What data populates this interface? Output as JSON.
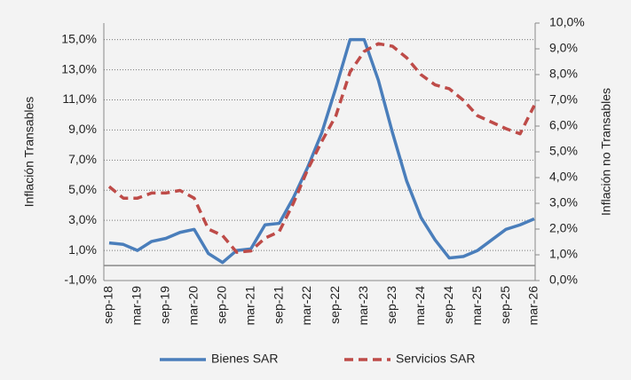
{
  "chart_data": {
    "type": "line",
    "y_label": "Inflación Transables",
    "y2_label": "Inflación no Transables",
    "categories": [
      "sep-18",
      null,
      "mar-19",
      null,
      "sep-19",
      null,
      "mar-20",
      null,
      "sep-20",
      null,
      "mar-21",
      null,
      "sep-21",
      null,
      "mar-22",
      null,
      "sep-22",
      null,
      "mar-23",
      null,
      "sep-23",
      null,
      "mar-24",
      null,
      "sep-24",
      null,
      "mar-25",
      null,
      "sep-25",
      null,
      "mar-26"
    ],
    "series": [
      {
        "name": "Bienes SAR",
        "color": "#4a7ebb",
        "dash": false,
        "values": [
          1.5,
          1.4,
          1.0,
          1.6,
          1.8,
          2.2,
          2.4,
          0.8,
          0.2,
          1.0,
          1.1,
          2.7,
          2.8,
          4.5,
          6.5,
          8.8,
          11.8,
          15.0,
          15.0,
          12.3,
          8.8,
          5.6,
          3.2,
          1.7,
          0.5,
          0.6,
          1.0,
          1.7,
          2.4,
          2.7,
          3.1
        ]
      },
      {
        "name": "Servicios SAR",
        "color": "#be4b48",
        "dash": true,
        "axis": "y2",
        "values": [
          3.65,
          3.2,
          3.2,
          3.4,
          3.4,
          3.5,
          3.2,
          2.0,
          1.75,
          1.1,
          1.15,
          1.65,
          1.9,
          3.0,
          4.3,
          5.4,
          6.4,
          8.1,
          8.9,
          9.2,
          9.1,
          8.65,
          8.0,
          7.6,
          7.45,
          7.0,
          6.4,
          6.15,
          5.9,
          5.7,
          6.8
        ]
      }
    ],
    "ylim": [
      -1,
      16.1
    ],
    "yticks": [
      {
        "value": -1,
        "label": "-1,0%"
      },
      {
        "value": 1,
        "label": "1,0%"
      },
      {
        "value": 3,
        "label": "3,0%"
      },
      {
        "value": 5,
        "label": "5,0%"
      },
      {
        "value": 7,
        "label": "7,0%"
      },
      {
        "value": 9,
        "label": "9,0%"
      },
      {
        "value": 11,
        "label": "11,0%"
      },
      {
        "value": 13,
        "label": "13,0%"
      },
      {
        "value": 15,
        "label": "15,0%"
      }
    ],
    "y2lim": [
      0,
      10
    ],
    "y2ticks": [
      {
        "value": 0,
        "label": "0,0%"
      },
      {
        "value": 1,
        "label": "1,0%"
      },
      {
        "value": 2,
        "label": "2,0%"
      },
      {
        "value": 3,
        "label": "3,0%"
      },
      {
        "value": 4,
        "label": "4,0%"
      },
      {
        "value": 5,
        "label": "5,0%"
      },
      {
        "value": 6,
        "label": "6,0%"
      },
      {
        "value": 7,
        "label": "7,0%"
      },
      {
        "value": 8,
        "label": "8,0%"
      },
      {
        "value": 9,
        "label": "9,0%"
      },
      {
        "value": 10,
        "label": "10,0%"
      }
    ],
    "grid": true,
    "legend": "bottom"
  }
}
